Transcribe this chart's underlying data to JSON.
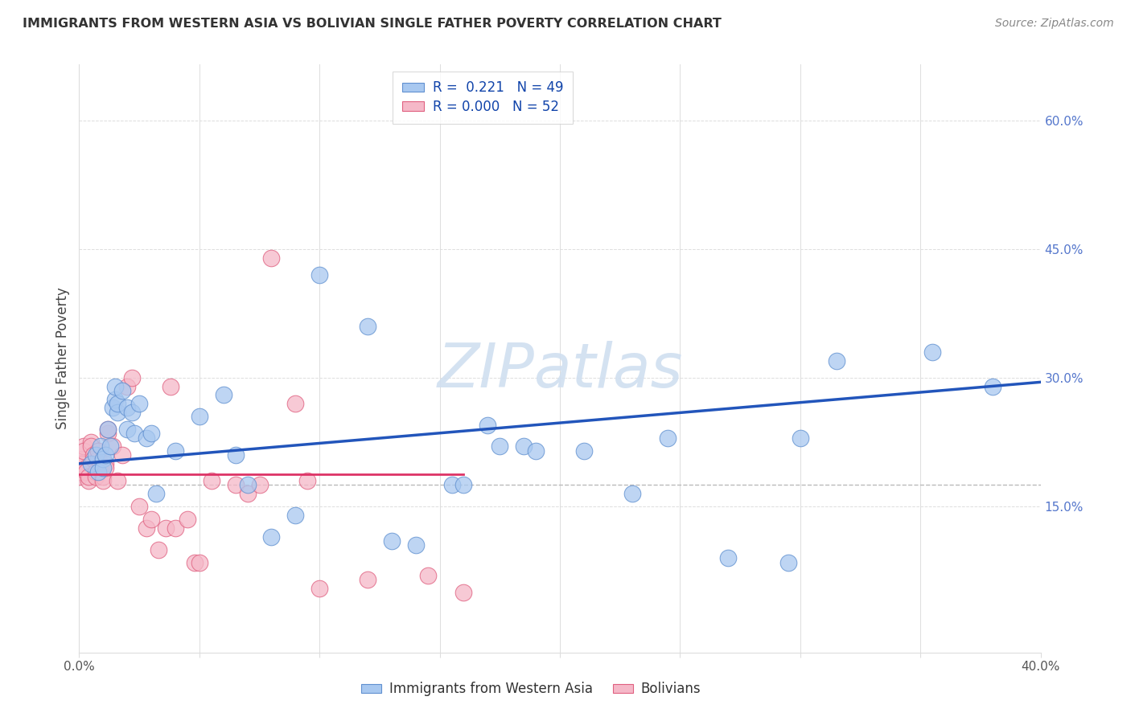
{
  "title": "IMMIGRANTS FROM WESTERN ASIA VS BOLIVIAN SINGLE FATHER POVERTY CORRELATION CHART",
  "source": "Source: ZipAtlas.com",
  "ylabel": "Single Father Poverty",
  "xlim": [
    0.0,
    0.4
  ],
  "ylim": [
    -0.02,
    0.665
  ],
  "x_ticks": [
    0.0,
    0.05,
    0.1,
    0.15,
    0.2,
    0.25,
    0.3,
    0.35,
    0.4
  ],
  "y_ticks_right": [
    0.15,
    0.3,
    0.45,
    0.6
  ],
  "y_tick_labels_right": [
    "15.0%",
    "30.0%",
    "45.0%",
    "60.0%"
  ],
  "blue_R": "0.221",
  "blue_N": "49",
  "pink_R": "0.000",
  "pink_N": "52",
  "legend_label_blue": "Immigrants from Western Asia",
  "legend_label_pink": "Bolivians",
  "blue_color": "#A8C8F0",
  "pink_color": "#F5B8C8",
  "blue_edge_color": "#6090D0",
  "pink_edge_color": "#E06080",
  "blue_line_color": "#2255BB",
  "pink_line_color": "#DD3366",
  "watermark": "ZIPatlas",
  "watermark_color": "#D0DFF0",
  "blue_x": [
    0.005,
    0.007,
    0.008,
    0.009,
    0.01,
    0.01,
    0.011,
    0.012,
    0.013,
    0.014,
    0.015,
    0.015,
    0.016,
    0.016,
    0.018,
    0.02,
    0.02,
    0.022,
    0.023,
    0.025,
    0.028,
    0.03,
    0.032,
    0.04,
    0.05,
    0.06,
    0.065,
    0.07,
    0.08,
    0.09,
    0.1,
    0.12,
    0.13,
    0.14,
    0.155,
    0.16,
    0.17,
    0.175,
    0.185,
    0.19,
    0.21,
    0.23,
    0.245,
    0.27,
    0.295,
    0.3,
    0.315,
    0.355,
    0.38
  ],
  "blue_y": [
    0.2,
    0.21,
    0.19,
    0.22,
    0.205,
    0.195,
    0.21,
    0.24,
    0.22,
    0.265,
    0.275,
    0.29,
    0.26,
    0.27,
    0.285,
    0.24,
    0.265,
    0.26,
    0.235,
    0.27,
    0.23,
    0.235,
    0.165,
    0.215,
    0.255,
    0.28,
    0.21,
    0.175,
    0.115,
    0.14,
    0.42,
    0.36,
    0.11,
    0.105,
    0.175,
    0.175,
    0.245,
    0.22,
    0.22,
    0.215,
    0.215,
    0.165,
    0.23,
    0.09,
    0.085,
    0.23,
    0.32,
    0.33,
    0.29
  ],
  "pink_x": [
    0.0,
    0.0,
    0.001,
    0.001,
    0.002,
    0.002,
    0.003,
    0.003,
    0.004,
    0.004,
    0.005,
    0.005,
    0.006,
    0.006,
    0.007,
    0.007,
    0.008,
    0.008,
    0.009,
    0.009,
    0.01,
    0.01,
    0.011,
    0.011,
    0.012,
    0.012,
    0.014,
    0.016,
    0.018,
    0.02,
    0.022,
    0.025,
    0.028,
    0.03,
    0.033,
    0.036,
    0.038,
    0.04,
    0.045,
    0.048,
    0.05,
    0.055,
    0.065,
    0.07,
    0.075,
    0.08,
    0.09,
    0.095,
    0.1,
    0.12,
    0.145,
    0.16
  ],
  "pink_y": [
    0.19,
    0.185,
    0.205,
    0.2,
    0.22,
    0.215,
    0.195,
    0.19,
    0.18,
    0.185,
    0.225,
    0.22,
    0.21,
    0.205,
    0.19,
    0.185,
    0.205,
    0.215,
    0.195,
    0.2,
    0.185,
    0.18,
    0.2,
    0.195,
    0.235,
    0.24,
    0.22,
    0.18,
    0.21,
    0.29,
    0.3,
    0.15,
    0.125,
    0.135,
    0.1,
    0.125,
    0.29,
    0.125,
    0.135,
    0.085,
    0.085,
    0.18,
    0.175,
    0.165,
    0.175,
    0.44,
    0.27,
    0.18,
    0.055,
    0.065,
    0.07,
    0.05
  ],
  "blue_trend_x": [
    0.0,
    0.4
  ],
  "blue_trend_y": [
    0.2,
    0.295
  ],
  "pink_trend_x": [
    0.0,
    0.16
  ],
  "pink_trend_y": [
    0.188,
    0.188
  ],
  "dashed_line_y": 0.175,
  "dashed_line_color": "#BBBBBB",
  "grid_color": "#DDDDDD",
  "bg_color": "#FFFFFF",
  "title_color": "#333333",
  "source_color": "#888888",
  "ylabel_color": "#444444",
  "right_tick_color": "#5577CC",
  "bottom_tick_color": "#555555"
}
